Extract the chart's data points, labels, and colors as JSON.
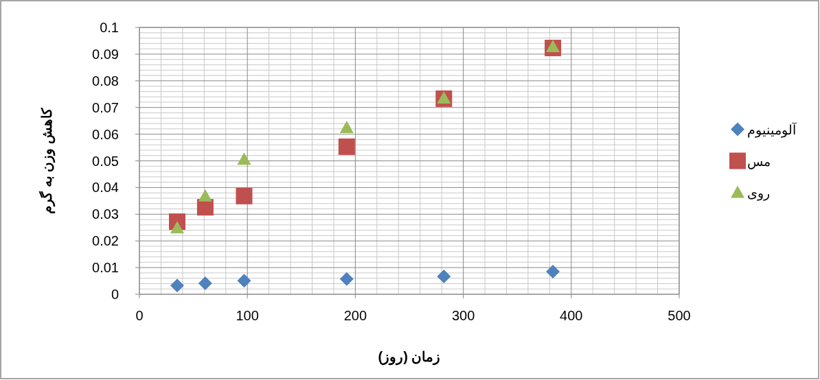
{
  "chart_data": {
    "type": "scatter",
    "xlabel": "زمان (روز)",
    "ylabel": "کاهش وزن به گرم",
    "xlim": [
      0,
      500
    ],
    "xticks": [
      0,
      100,
      200,
      300,
      400,
      500
    ],
    "ylim": [
      0,
      0.1
    ],
    "yticks": [
      0,
      0.01,
      0.02,
      0.03,
      0.04,
      0.05,
      0.06,
      0.07,
      0.08,
      0.09,
      0.1
    ],
    "grid": true,
    "legend": "right",
    "series": [
      {
        "name": "آلومینیوم",
        "color": "#4f81bd",
        "marker": "diamond",
        "x": [
          35,
          61,
          97,
          192,
          282,
          383
        ],
        "values": [
          0.0033,
          0.0041,
          0.0051,
          0.0057,
          0.0067,
          0.0085
        ]
      },
      {
        "name": "مس",
        "color": "#c0504d",
        "marker": "square",
        "x": [
          35,
          61,
          97,
          192,
          282,
          383
        ],
        "values": [
          0.0272,
          0.0326,
          0.0368,
          0.0553,
          0.0733,
          0.0923
        ]
      },
      {
        "name": "روی",
        "color": "#9bbb59",
        "marker": "triangle",
        "x": [
          35,
          61,
          97,
          192,
          282,
          383
        ],
        "values": [
          0.0249,
          0.0368,
          0.0506,
          0.0625,
          0.0735,
          0.0928
        ]
      }
    ]
  }
}
